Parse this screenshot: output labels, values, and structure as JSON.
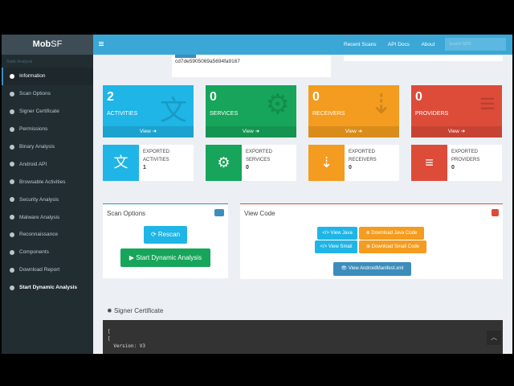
{
  "app": {
    "logo_bold": "Mob",
    "logo_rest": "SF"
  },
  "sidebar": {
    "section": "Static Analysis",
    "items": [
      {
        "label": "Information",
        "icon": "info-icon"
      },
      {
        "label": "Scan Options",
        "icon": "list-icon"
      },
      {
        "label": "Signer Certificate",
        "icon": "certificate-icon"
      },
      {
        "label": "Permissions",
        "icon": "list-icon"
      },
      {
        "label": "Binary Analysis",
        "icon": "flag-icon"
      },
      {
        "label": "Android API",
        "icon": "target-icon"
      },
      {
        "label": "Browsable Activities",
        "icon": "clone-icon"
      },
      {
        "label": "Security Analysis",
        "icon": "circle-icon"
      },
      {
        "label": "Malware Analysis",
        "icon": "bug-icon"
      },
      {
        "label": "Reconnaissance",
        "icon": "plus-icon"
      },
      {
        "label": "Components",
        "icon": "cog-icon"
      },
      {
        "label": "Download Report",
        "icon": "calendar-icon"
      },
      {
        "label": "Start Dynamic Analysis",
        "icon": "play-circle-icon"
      }
    ]
  },
  "header": {
    "nav": [
      "Recent Scans",
      "API Docs",
      "About"
    ],
    "search_placeholder": "Search MD5"
  },
  "hash": "cd7de5905069a5694fa9167",
  "tiles": [
    {
      "count": "2",
      "label": "ACTIVITIES",
      "view": "View",
      "color": "#1fb5e6",
      "icon": "language-icon"
    },
    {
      "count": "0",
      "label": "SERVICES",
      "view": "View",
      "color": "#16a55a",
      "icon": "cogs-icon"
    },
    {
      "count": "0",
      "label": "RECEIVERS",
      "view": "View",
      "color": "#f39c1f",
      "icon": "sort-amount-down-icon"
    },
    {
      "count": "0",
      "label": "PROVIDERS",
      "view": "View",
      "color": "#dd4b39",
      "icon": "database-icon"
    }
  ],
  "exported": [
    {
      "label": "EXPORTED ACTIVITIES",
      "value": "1"
    },
    {
      "label": "EXPORTED SERVICES",
      "value": "0"
    },
    {
      "label": "EXPORTED RECEIVERS",
      "value": "0"
    },
    {
      "label": "EXPORTED PROVIDERS",
      "value": "0"
    }
  ],
  "scan_options": {
    "title": "Scan Options",
    "rescan": "Rescan",
    "dynamic": "Start Dynamic Analysis"
  },
  "view_code": {
    "title": "View Code",
    "view_java": "</> View Java",
    "download_java": "Download Java Code",
    "view_smali": "</> View Smali",
    "download_smali": "Download Smali Code",
    "manifest": "View AndroidManifest.xml"
  },
  "signer": {
    "title": "Signer Certificate",
    "lines": "[\n[\n  Version: V3"
  }
}
